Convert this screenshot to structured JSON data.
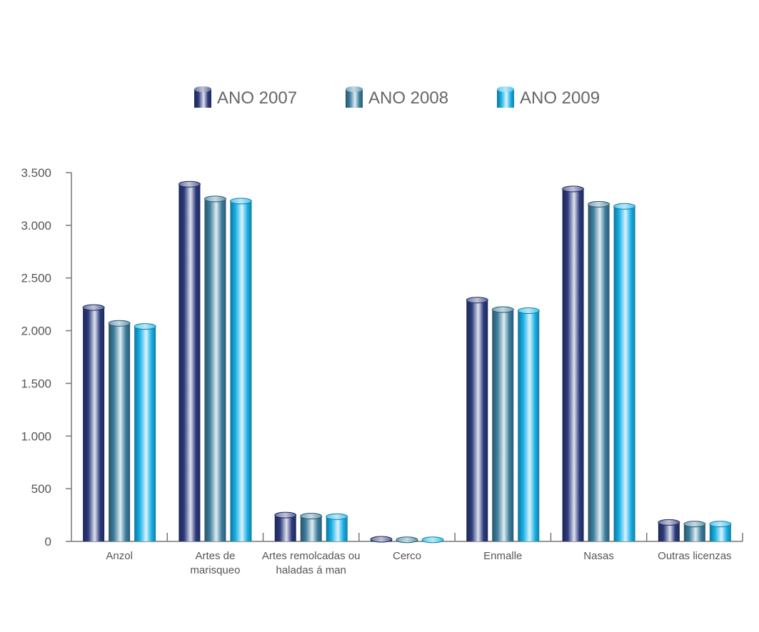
{
  "chart_data": {
    "type": "bar",
    "categories": [
      "Anzol",
      "Artes de marisqueo",
      "Artes remolcadas ou haladas á man",
      "Cerco",
      "Enmalle",
      "Nasas",
      "Outras licenzas"
    ],
    "series": [
      {
        "name": "ANO 2007",
        "color": "#2c3b7e",
        "values": [
          2220,
          3390,
          250,
          20,
          2290,
          3345,
          180
        ]
      },
      {
        "name": "ANO 2008",
        "color": "#3d7f9e",
        "values": [
          2070,
          3250,
          240,
          15,
          2200,
          3200,
          165
        ]
      },
      {
        "name": "ANO 2009",
        "color": "#17b1e8",
        "values": [
          2040,
          3230,
          235,
          15,
          2190,
          3180,
          165
        ]
      }
    ],
    "ylim": [
      0,
      3500
    ],
    "yticks": [
      0,
      500,
      {
        "value": 1000,
        "label": "1.000"
      },
      {
        "value": 1500,
        "label": "1.500"
      },
      {
        "value": 2000,
        "label": "2.000"
      },
      {
        "value": 2500,
        "label": "2.500"
      },
      {
        "value": 3000,
        "label": "3.000"
      },
      {
        "value": 3500,
        "label": "3.500"
      }
    ],
    "grid": false,
    "legend": "top"
  }
}
